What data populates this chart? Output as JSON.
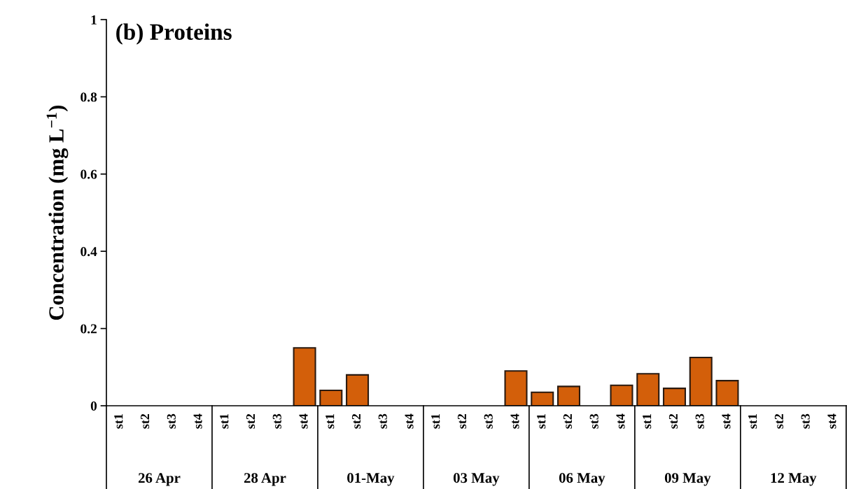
{
  "chart_data": {
    "type": "bar",
    "title": "(b) Proteins",
    "ylabel": "Concentration (mg L$^{−1}$)",
    "categories": [
      "st1",
      "st2",
      "st3",
      "st4",
      "st1",
      "st2",
      "st3",
      "st4",
      "st1",
      "st2",
      "st3",
      "st4",
      "st1",
      "st2",
      "st3",
      "st4",
      "st1",
      "st2",
      "st3",
      "st4",
      "st1",
      "st2",
      "st3",
      "st4",
      "st1",
      "st2",
      "st3",
      "st4"
    ],
    "values": [
      null,
      null,
      null,
      null,
      null,
      null,
      null,
      0.15,
      0.04,
      0.08,
      null,
      null,
      null,
      null,
      null,
      0.09,
      0.035,
      0.05,
      null,
      0.053,
      0.083,
      0.045,
      0.125,
      0.065,
      null,
      null,
      null,
      null
    ],
    "color": "#d35f0a",
    "annotations": [
      "26 Apr",
      "28 Apr",
      "01-May",
      "03 May",
      "06 May",
      "09 May",
      "12 May"
    ],
    "ylim": [
      0,
      1
    ],
    "yticks": [
      0,
      0.2,
      0.4,
      0.6,
      0.8,
      1
    ],
    "grid": false
  }
}
